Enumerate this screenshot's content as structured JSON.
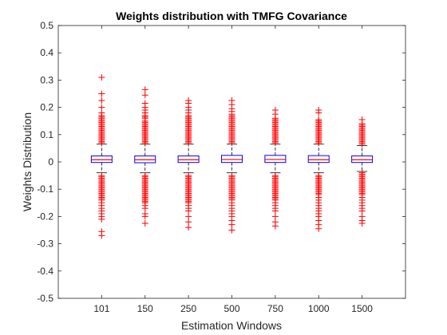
{
  "chart_data": {
    "type": "box",
    "title": "Weights distribution with TMFG Covariance",
    "xlabel": "Estimation Windows",
    "ylabel": "Weights Distribution",
    "categories": [
      "101",
      "150",
      "250",
      "500",
      "750",
      "1000",
      "1500"
    ],
    "ylim": [
      -0.5,
      0.5
    ],
    "yticks": [
      -0.5,
      -0.4,
      -0.3,
      -0.2,
      -0.1,
      0,
      0.1,
      0.2,
      0.3,
      0.4,
      0.5
    ],
    "ytick_labels": [
      "-0.5",
      "-0.4",
      "-0.3",
      "-0.2",
      "-0.1",
      "0",
      "0.1",
      "0.2",
      "0.3",
      "0.4",
      "0.5"
    ],
    "grid": false,
    "colors": {
      "box": "#0000ff",
      "median": "#ff0000",
      "whisker": "#000000",
      "outlier": "#ff0000",
      "axis": "#262626"
    },
    "boxes": [
      {
        "q1": -0.002,
        "median": 0.008,
        "q3": 0.022,
        "whisker_low": -0.04,
        "whisker_high": 0.065,
        "outliers": [
          0.31,
          0.25,
          0.225,
          0.2,
          0.18,
          0.17,
          0.165,
          0.16,
          0.155,
          0.15,
          0.145,
          0.14,
          0.135,
          0.13,
          0.125,
          0.12,
          0.115,
          0.11,
          0.105,
          0.1,
          0.095,
          0.09,
          0.085,
          0.08,
          0.075,
          0.07,
          -0.05,
          -0.055,
          -0.06,
          -0.065,
          -0.07,
          -0.075,
          -0.08,
          -0.085,
          -0.09,
          -0.095,
          -0.1,
          -0.105,
          -0.11,
          -0.115,
          -0.12,
          -0.125,
          -0.13,
          -0.135,
          -0.14,
          -0.15,
          -0.16,
          -0.17,
          -0.18,
          -0.19,
          -0.2,
          -0.21,
          -0.255,
          -0.27
        ]
      },
      {
        "q1": -0.003,
        "median": 0.008,
        "q3": 0.022,
        "whisker_low": -0.04,
        "whisker_high": 0.065,
        "outliers": [
          0.265,
          0.245,
          0.215,
          0.2,
          0.19,
          0.18,
          0.17,
          0.165,
          0.16,
          0.15,
          0.145,
          0.14,
          0.135,
          0.13,
          0.125,
          0.12,
          0.115,
          0.11,
          0.105,
          0.1,
          0.095,
          0.09,
          0.085,
          0.08,
          0.075,
          0.07,
          -0.05,
          -0.055,
          -0.06,
          -0.065,
          -0.07,
          -0.075,
          -0.08,
          -0.085,
          -0.09,
          -0.095,
          -0.1,
          -0.105,
          -0.11,
          -0.115,
          -0.12,
          -0.125,
          -0.13,
          -0.135,
          -0.14,
          -0.145,
          -0.15,
          -0.16,
          -0.17,
          -0.19,
          -0.2,
          -0.225
        ]
      },
      {
        "q1": -0.002,
        "median": 0.008,
        "q3": 0.022,
        "whisker_low": -0.04,
        "whisker_high": 0.065,
        "outliers": [
          0.225,
          0.215,
          0.2,
          0.19,
          0.18,
          0.17,
          0.165,
          0.16,
          0.155,
          0.15,
          0.145,
          0.14,
          0.135,
          0.13,
          0.125,
          0.12,
          0.115,
          0.11,
          0.105,
          0.1,
          0.095,
          0.09,
          0.085,
          0.08,
          0.075,
          0.07,
          -0.05,
          -0.055,
          -0.06,
          -0.065,
          -0.07,
          -0.075,
          -0.08,
          -0.085,
          -0.09,
          -0.095,
          -0.1,
          -0.105,
          -0.11,
          -0.115,
          -0.12,
          -0.125,
          -0.13,
          -0.135,
          -0.14,
          -0.145,
          -0.15,
          -0.16,
          -0.17,
          -0.18,
          -0.2,
          -0.22,
          -0.24
        ]
      },
      {
        "q1": -0.002,
        "median": 0.009,
        "q3": 0.024,
        "whisker_low": -0.04,
        "whisker_high": 0.065,
        "outliers": [
          0.225,
          0.21,
          0.195,
          0.185,
          0.175,
          0.17,
          0.165,
          0.16,
          0.155,
          0.15,
          0.145,
          0.14,
          0.135,
          0.13,
          0.125,
          0.12,
          0.115,
          0.11,
          0.105,
          0.1,
          0.095,
          0.09,
          0.085,
          0.08,
          0.075,
          0.07,
          -0.05,
          -0.055,
          -0.06,
          -0.065,
          -0.07,
          -0.075,
          -0.08,
          -0.085,
          -0.09,
          -0.095,
          -0.1,
          -0.105,
          -0.11,
          -0.115,
          -0.12,
          -0.125,
          -0.13,
          -0.135,
          -0.14,
          -0.15,
          -0.16,
          -0.17,
          -0.18,
          -0.19,
          -0.2,
          -0.215,
          -0.23,
          -0.25
        ]
      },
      {
        "q1": -0.002,
        "median": 0.009,
        "q3": 0.024,
        "whisker_low": -0.04,
        "whisker_high": 0.065,
        "outliers": [
          0.19,
          0.175,
          0.16,
          0.155,
          0.15,
          0.145,
          0.14,
          0.135,
          0.13,
          0.125,
          0.12,
          0.115,
          0.11,
          0.105,
          0.1,
          0.095,
          0.09,
          0.085,
          0.08,
          0.075,
          0.07,
          -0.05,
          -0.055,
          -0.06,
          -0.065,
          -0.07,
          -0.075,
          -0.08,
          -0.085,
          -0.09,
          -0.095,
          -0.1,
          -0.105,
          -0.11,
          -0.115,
          -0.12,
          -0.125,
          -0.13,
          -0.135,
          -0.14,
          -0.15,
          -0.16,
          -0.17,
          -0.18,
          -0.2,
          -0.22,
          -0.235
        ]
      },
      {
        "q1": -0.002,
        "median": 0.008,
        "q3": 0.023,
        "whisker_low": -0.04,
        "whisker_high": 0.065,
        "outliers": [
          0.19,
          0.18,
          0.155,
          0.15,
          0.145,
          0.14,
          0.135,
          0.13,
          0.125,
          0.12,
          0.115,
          0.11,
          0.105,
          0.1,
          0.095,
          0.09,
          0.085,
          0.08,
          0.075,
          0.07,
          -0.05,
          -0.055,
          -0.06,
          -0.065,
          -0.07,
          -0.075,
          -0.08,
          -0.085,
          -0.09,
          -0.095,
          -0.1,
          -0.105,
          -0.11,
          -0.115,
          -0.12,
          -0.13,
          -0.14,
          -0.15,
          -0.16,
          -0.17,
          -0.18,
          -0.19,
          -0.2,
          -0.215,
          -0.23,
          -0.245
        ]
      },
      {
        "q1": -0.002,
        "median": 0.008,
        "q3": 0.022,
        "whisker_low": -0.035,
        "whisker_high": 0.06,
        "outliers": [
          0.155,
          0.14,
          0.135,
          0.13,
          0.125,
          0.12,
          0.115,
          0.11,
          0.105,
          0.1,
          0.095,
          0.09,
          0.085,
          0.08,
          0.075,
          0.07,
          0.065,
          -0.04,
          -0.045,
          -0.05,
          -0.055,
          -0.06,
          -0.065,
          -0.07,
          -0.075,
          -0.08,
          -0.085,
          -0.09,
          -0.095,
          -0.1,
          -0.105,
          -0.11,
          -0.115,
          -0.12,
          -0.13,
          -0.14,
          -0.15,
          -0.16,
          -0.17,
          -0.18,
          -0.2,
          -0.215,
          -0.225
        ]
      }
    ]
  }
}
